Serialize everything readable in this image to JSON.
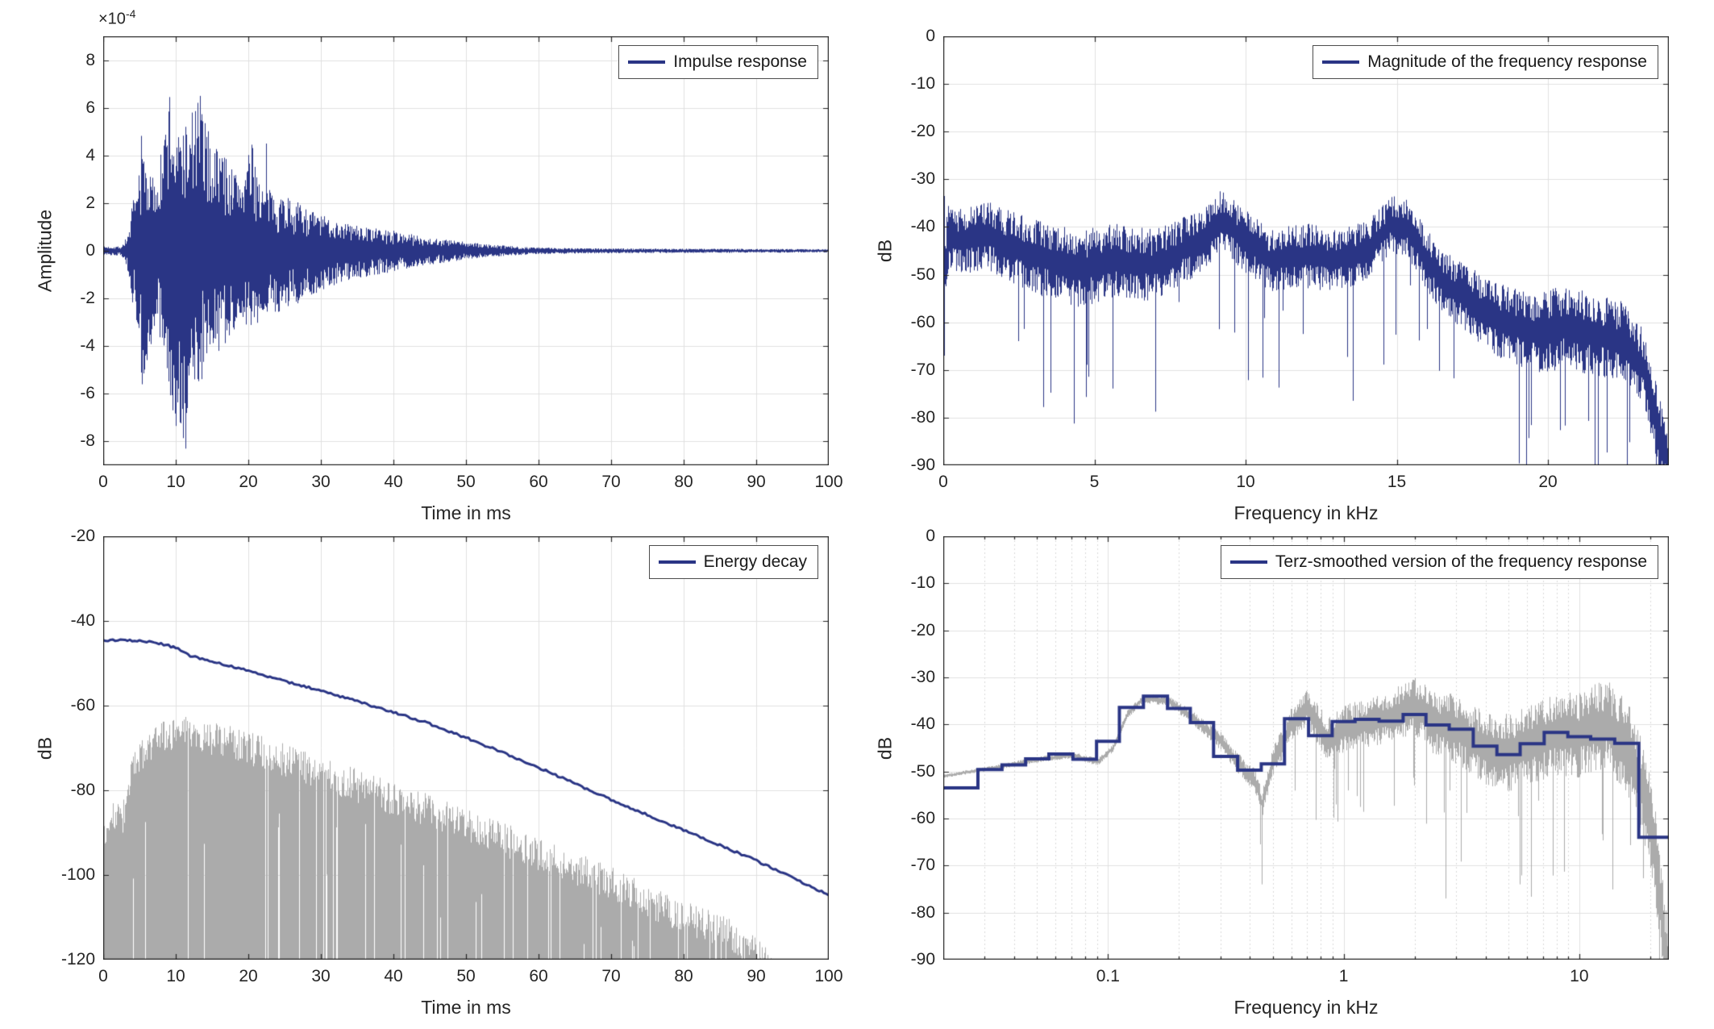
{
  "figure": {
    "background": "#ffffff",
    "accent_navy": "#2a3585",
    "gray_series": "#ababab",
    "grid_color": "#e0e0e0",
    "minor_grid_color": "#d9d9d9",
    "axis_color": "#262626",
    "tick_label_color": "#262626"
  },
  "chart_data": [
    {
      "id": "impulse",
      "type": "line",
      "legend": "Impulse response",
      "legend_position": "northeast",
      "xlabel": "Time in ms",
      "ylabel": "Amplitude",
      "y_multiplier": {
        "prefix": "×10",
        "exponent": "-4"
      },
      "xlim": [
        0,
        100
      ],
      "ylim": [
        -9,
        9
      ],
      "y_unit_exponent": -4,
      "grid": true,
      "xticks": {
        "values": [
          0,
          10,
          20,
          30,
          40,
          50,
          60,
          70,
          80,
          90,
          100
        ],
        "labels": [
          "0",
          "10",
          "20",
          "30",
          "40",
          "50",
          "60",
          "70",
          "80",
          "90",
          "100"
        ]
      },
      "yticks": {
        "values": [
          8,
          6,
          4,
          2,
          0,
          -2,
          -4,
          -6,
          -8
        ],
        "labels": [
          "8",
          "6",
          "4",
          "2",
          "0",
          "-2",
          "-4",
          "-6",
          "-8"
        ]
      },
      "gen": {
        "seed": 7,
        "env_t": [
          0,
          2.5,
          3.5,
          4,
          4.6,
          5.2,
          6,
          7,
          8,
          9,
          10,
          11,
          12,
          13,
          14,
          15,
          16,
          17.5,
          19,
          20.5,
          22,
          24,
          26,
          28,
          30,
          33,
          36,
          40,
          44,
          48,
          52,
          56,
          60,
          70,
          100
        ],
        "env_pos": [
          0.18,
          0.2,
          0.8,
          2.1,
          2.4,
          5.0,
          3.6,
          3.0,
          4.2,
          6.4,
          4.6,
          5.6,
          5.0,
          6.5,
          5.6,
          4.4,
          4.6,
          3.6,
          3.2,
          4.5,
          2.6,
          2.5,
          2.2,
          1.8,
          1.5,
          1.2,
          1.0,
          0.85,
          0.6,
          0.45,
          0.3,
          0.2,
          0.14,
          0.1,
          0.07
        ],
        "env_neg": [
          0.18,
          0.2,
          1.0,
          2.2,
          3.0,
          5.6,
          4.6,
          3.4,
          4.0,
          6.0,
          7.4,
          8.0,
          5.6,
          5.8,
          5.2,
          4.4,
          4.2,
          3.8,
          3.0,
          3.4,
          2.8,
          2.6,
          2.4,
          2.0,
          1.7,
          1.3,
          1.1,
          0.9,
          0.62,
          0.45,
          0.3,
          0.2,
          0.14,
          0.1,
          0.07
        ],
        "peaks": [
          {
            "t": 9.1,
            "v": 6.45
          },
          {
            "t": 13.3,
            "v": 6.5
          },
          {
            "t": 11.35,
            "v": -8.3
          },
          {
            "t": 10.5,
            "v": -7.2
          },
          {
            "t": 5.3,
            "v": -5.6
          },
          {
            "t": 22.4,
            "v": 4.5
          },
          {
            "t": 12.2,
            "v": 5.8
          }
        ]
      }
    },
    {
      "id": "magnitude",
      "type": "line",
      "legend": "Magnitude of the frequency response",
      "legend_position": "northeast",
      "xlabel": "Frequency in kHz",
      "ylabel": "dB",
      "xlim": [
        0,
        24
      ],
      "ylim": [
        -90,
        0
      ],
      "grid": true,
      "xticks": {
        "values": [
          0,
          5,
          10,
          15,
          20
        ],
        "labels": [
          "0",
          "5",
          "10",
          "15",
          "20"
        ]
      },
      "yticks": {
        "values": [
          0,
          -10,
          -20,
          -30,
          -40,
          -50,
          -60,
          -70,
          -80,
          -90
        ],
        "labels": [
          "0",
          "-10",
          "-20",
          "-30",
          "-40",
          "-50",
          "-60",
          "-70",
          "-80",
          "-90"
        ]
      },
      "gen": {
        "seed": 12345,
        "mean_f": [
          0,
          0.15,
          0.6,
          1.5,
          2.5,
          3.5,
          4.5,
          5.5,
          7,
          8.5,
          9.2,
          10,
          10.8,
          12,
          13,
          14,
          14.8,
          15.3,
          16,
          16.6,
          17.5,
          18.5,
          19.5,
          20.5,
          21.5,
          22.5,
          23.2,
          23.6,
          24
        ],
        "mean_v": [
          -52,
          -42,
          -43,
          -42,
          -45,
          -47,
          -49,
          -47,
          -48,
          -43,
          -38.5,
          -43,
          -47,
          -46,
          -47,
          -45,
          -39.5,
          -40,
          -47,
          -52,
          -56,
          -60,
          -62,
          -61,
          -62.5,
          -64,
          -70,
          -82,
          -90
        ],
        "spread_f": [
          0,
          1,
          3,
          6,
          9,
          12,
          15,
          17,
          20,
          24
        ],
        "spread_v": [
          7,
          7,
          8,
          8,
          6.5,
          7,
          6,
          7,
          9,
          8
        ],
        "dip_prob": 0.04,
        "dip_depth": 26,
        "dip_min_f": 2,
        "start_spike": {
          "hi": -33.5,
          "lo": -67
        }
      }
    },
    {
      "id": "energy",
      "type": "line",
      "legend": "Energy decay",
      "legend_position": "northeast",
      "xlabel": "Time in ms",
      "ylabel": "dB",
      "xlim": [
        0,
        100
      ],
      "ylim": [
        -120,
        -20
      ],
      "grid": true,
      "xticks": {
        "values": [
          0,
          10,
          20,
          30,
          40,
          50,
          60,
          70,
          80,
          90,
          100
        ],
        "labels": [
          "0",
          "10",
          "20",
          "30",
          "40",
          "50",
          "60",
          "70",
          "80",
          "90",
          "100"
        ]
      },
      "yticks": {
        "values": [
          -20,
          -40,
          -60,
          -80,
          -100,
          -120
        ],
        "labels": [
          "-20",
          "-40",
          "-60",
          "-80",
          "-100",
          "-120"
        ]
      },
      "gen": {
        "seed": 99,
        "decay_t": [
          0,
          4,
          6,
          8,
          10,
          12,
          15,
          20,
          25,
          30,
          35,
          40,
          45,
          50,
          55,
          60,
          65,
          70,
          75,
          80,
          85,
          90,
          95,
          100
        ],
        "decay_v": [
          -44.5,
          -44.6,
          -44.9,
          -45.4,
          -46.3,
          -48.2,
          -49.6,
          -51.8,
          -54.2,
          -56.5,
          -59.0,
          -61.5,
          -64.3,
          -67.6,
          -71.0,
          -74.6,
          -78.4,
          -82.2,
          -85.8,
          -89.4,
          -93.0,
          -96.6,
          -100.6,
          -104.8
        ],
        "gray_t": [
          0,
          1,
          3,
          4,
          6,
          8,
          10,
          13,
          16,
          20,
          25,
          30,
          35,
          40,
          45,
          50,
          55,
          60,
          65,
          70,
          75,
          80,
          85,
          88,
          92,
          100
        ],
        "gray_v": [
          -89,
          -87,
          -86,
          -74,
          -70,
          -68,
          -66,
          -67,
          -68,
          -70,
          -73,
          -76,
          -79,
          -82,
          -85,
          -88,
          -91.5,
          -95,
          -98.5,
          -102,
          -106,
          -110,
          -113,
          -116,
          -122,
          -130
        ],
        "gray_spikes": [
          {
            "t": 86.5,
            "v": -112
          },
          {
            "t": 88.5,
            "v": -115
          }
        ]
      }
    },
    {
      "id": "terz",
      "type": "line",
      "legend": "Terz-smoothed version of the frequency response",
      "legend_position": "northeast",
      "xlabel": "Frequency in kHz",
      "ylabel": "dB",
      "xscale": "log",
      "xlim": [
        0.02,
        24
      ],
      "ylim": [
        -90,
        0
      ],
      "grid": true,
      "xticks": {
        "values": [
          0.1,
          1,
          10
        ],
        "labels": [
          "0.1",
          "1",
          "10"
        ]
      },
      "minor_xticks": [
        0.03,
        0.04,
        0.05,
        0.06,
        0.07,
        0.08,
        0.09,
        0.2,
        0.3,
        0.4,
        0.5,
        0.6,
        0.7,
        0.8,
        0.9,
        2,
        3,
        4,
        5,
        6,
        7,
        8,
        9,
        20
      ],
      "yticks": {
        "values": [
          0,
          -10,
          -20,
          -30,
          -40,
          -50,
          -60,
          -70,
          -80,
          -90
        ],
        "labels": [
          "0",
          "-10",
          "-20",
          "-30",
          "-40",
          "-50",
          "-60",
          "-70",
          "-80",
          "-90"
        ]
      },
      "gen": {
        "seed": 2024,
        "bands": [
          {
            "f": 0.02,
            "v": -53.5
          },
          {
            "f": 0.025,
            "v": -53.5
          },
          {
            "f": 0.0315,
            "v": -49.6
          },
          {
            "f": 0.04,
            "v": -48.6
          },
          {
            "f": 0.05,
            "v": -47.3
          },
          {
            "f": 0.063,
            "v": -46.3
          },
          {
            "f": 0.08,
            "v": -47.4
          },
          {
            "f": 0.1,
            "v": -43.6
          },
          {
            "f": 0.125,
            "v": -36.4
          },
          {
            "f": 0.16,
            "v": -34.0
          },
          {
            "f": 0.2,
            "v": -36.6
          },
          {
            "f": 0.25,
            "v": -39.6
          },
          {
            "f": 0.315,
            "v": -46.8
          },
          {
            "f": 0.4,
            "v": -49.7
          },
          {
            "f": 0.5,
            "v": -48.4
          },
          {
            "f": 0.63,
            "v": -38.8
          },
          {
            "f": 0.8,
            "v": -42.4
          },
          {
            "f": 1.0,
            "v": -39.4
          },
          {
            "f": 1.25,
            "v": -38.9
          },
          {
            "f": 1.6,
            "v": -39.3
          },
          {
            "f": 2.0,
            "v": -37.9
          },
          {
            "f": 2.5,
            "v": -40.1
          },
          {
            "f": 3.15,
            "v": -41.0
          },
          {
            "f": 4.0,
            "v": -44.6
          },
          {
            "f": 5.0,
            "v": -46.4
          },
          {
            "f": 6.3,
            "v": -44.1
          },
          {
            "f": 8.0,
            "v": -41.7
          },
          {
            "f": 10.0,
            "v": -42.6
          },
          {
            "f": 12.5,
            "v": -43.1
          },
          {
            "f": 16.0,
            "v": -44.0
          },
          {
            "f": 20.0,
            "v": -64.0
          }
        ],
        "gray_f": [
          0.02,
          0.03,
          0.05,
          0.07,
          0.09,
          0.105,
          0.12,
          0.14,
          0.18,
          0.22,
          0.26,
          0.3,
          0.35,
          0.42,
          0.45,
          0.5,
          0.6,
          0.7,
          0.85,
          1.0,
          1.3,
          1.7,
          2.0,
          2.5,
          3.0,
          4.0,
          5.0,
          6.3,
          8.0,
          10,
          13,
          16,
          18,
          19.5,
          21,
          22,
          24
        ],
        "gray_v": [
          -51,
          -49.5,
          -47.5,
          -46.5,
          -48,
          -45,
          -38,
          -34.5,
          -35,
          -38,
          -41,
          -43.5,
          -48,
          -52,
          -57,
          -48,
          -40,
          -36.5,
          -43,
          -41,
          -39.5,
          -38,
          -36.5,
          -40,
          -41,
          -45,
          -46,
          -44,
          -42,
          -42,
          -40,
          -45,
          -52,
          -58,
          -68,
          -78,
          -95
        ],
        "spread_f": [
          0.02,
          0.1,
          0.2,
          0.4,
          0.7,
          1,
          2,
          4,
          8,
          16,
          24
        ],
        "spread_v": [
          0.4,
          0.8,
          1.2,
          2.5,
          4,
          5,
          6.5,
          8,
          9,
          10,
          10
        ],
        "deep_dips": [
          {
            "f": 0.45,
            "v": -74
          },
          {
            "f": 0.93,
            "v": -57
          },
          {
            "f": 2.7,
            "v": -77
          },
          {
            "f": 5.6,
            "v": -74
          }
        ],
        "dip_prob": 0.05,
        "dip_depth": 28,
        "dip_min_f": 0.5
      }
    }
  ]
}
